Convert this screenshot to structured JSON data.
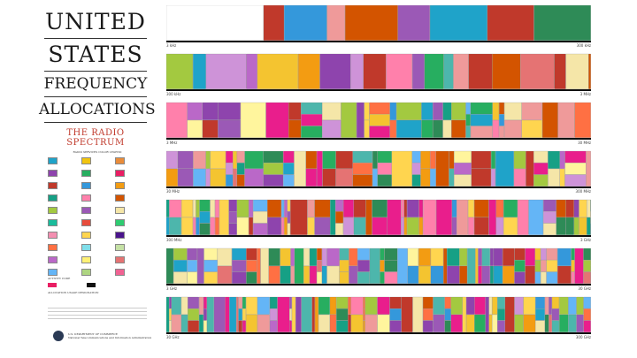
{
  "title": {
    "line1": "UNITED",
    "line2": "STATES",
    "line3": "FREQUENCY",
    "line4": "ALLOCATIONS",
    "subtitle": "THE RADIO SPECTRUM"
  },
  "legend": {
    "heading": "RADIO SERVICES COLOR LEGEND",
    "items": [
      {
        "color": "#1fa3c9"
      },
      {
        "color": "#f1c40f"
      },
      {
        "color": "#e98c3a"
      },
      {
        "color": "#8e44ad"
      },
      {
        "color": "#27ae60"
      },
      {
        "color": "#e91e63"
      },
      {
        "color": "#c0392b"
      },
      {
        "color": "#3498db"
      },
      {
        "color": "#f39c12"
      },
      {
        "color": "#16a085"
      },
      {
        "color": "#ff80ab"
      },
      {
        "color": "#d35400"
      },
      {
        "color": "#a3c940"
      },
      {
        "color": "#9b59b6"
      },
      {
        "color": "#f5e6a8"
      },
      {
        "color": "#1abc9c"
      },
      {
        "color": "#e74c3c"
      },
      {
        "color": "#2ecc71"
      },
      {
        "color": "#f48fb1"
      },
      {
        "color": "#ffd54f"
      },
      {
        "color": "#4a148c"
      },
      {
        "color": "#ff7043"
      },
      {
        "color": "#80deea"
      },
      {
        "color": "#c5e1a5"
      },
      {
        "color": "#ba68c8"
      },
      {
        "color": "#fff176"
      },
      {
        "color": "#e57373"
      },
      {
        "color": "#64b5f6"
      },
      {
        "color": "#aed581"
      },
      {
        "color": "#f06292"
      }
    ]
  },
  "activity": {
    "heading": "ACTIVITY CODE",
    "row1_color": "#e91e63",
    "row2_color": "#111111"
  },
  "allocation_heading": "ALLOCATION USAGE DESIGNATION",
  "department": {
    "line1": "U.S. DEPARTMENT OF COMMERCE",
    "line2": "National Telecommunications and Information Administration"
  },
  "bands": [
    {
      "start": "3 kHz",
      "end": "300 kHz"
    },
    {
      "start": "300 kHz",
      "end": "3 MHz"
    },
    {
      "start": "3 MHz",
      "end": "30 MHz"
    },
    {
      "start": "30 MHz",
      "end": "300 MHz"
    },
    {
      "start": "300 MHz",
      "end": "3 GHz"
    },
    {
      "start": "3 GHz",
      "end": "30 GHz"
    },
    {
      "start": "30 GHz",
      "end": "300 GHz"
    }
  ],
  "palette": [
    "#e91e8c",
    "#1fa3c9",
    "#f5e6a8",
    "#2e8b57",
    "#f4c430",
    "#c0392b",
    "#8e44ad",
    "#ff80ab",
    "#27ae60",
    "#d35400",
    "#ba68c8",
    "#a3c940",
    "#3498db",
    "#f39c12",
    "#16a085",
    "#e57373",
    "#ffd54f",
    "#64b5f6",
    "#9b59b6",
    "#ff7043",
    "#fff59d",
    "#ef9a9a",
    "#4db6ac",
    "#ce93d8"
  ]
}
